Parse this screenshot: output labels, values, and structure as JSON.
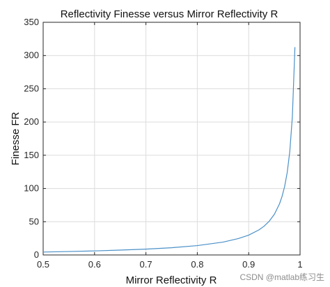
{
  "chart_data": {
    "type": "line",
    "title": "Reflectivity Finesse versus Mirror Reflectivity R",
    "xlabel": "Mirror Reflectivity R",
    "ylabel": "Finesse FR",
    "xlim": [
      0.5,
      1.0
    ],
    "ylim": [
      0,
      350
    ],
    "grid": true,
    "x_ticks": [
      0.5,
      0.6,
      0.7,
      0.8,
      0.9,
      1
    ],
    "x_tick_labels": [
      "0.5",
      "0.6",
      "0.7",
      "0.8",
      "0.9",
      "1"
    ],
    "y_ticks": [
      0,
      50,
      100,
      150,
      200,
      250,
      300,
      350
    ],
    "y_tick_labels": [
      "0",
      "50",
      "100",
      "150",
      "200",
      "250",
      "300",
      "350"
    ],
    "series": [
      {
        "color": "#4a90c8",
        "x": [
          0.5,
          0.55,
          0.6,
          0.65,
          0.7,
          0.75,
          0.8,
          0.85,
          0.88,
          0.9,
          0.92,
          0.93,
          0.94,
          0.95,
          0.96,
          0.965,
          0.97,
          0.975,
          0.98,
          0.985,
          0.99
        ],
        "y": [
          4.4,
          5.2,
          6.1,
          7.3,
          8.8,
          10.9,
          14.1,
          19.3,
          24.7,
          29.8,
          37.7,
          43.3,
          50.8,
          61.2,
          76.9,
          88.2,
          103.1,
          124.1,
          155.5,
          207.8,
          312.6
        ]
      }
    ]
  },
  "watermark": "CSDN @matlab练习生"
}
